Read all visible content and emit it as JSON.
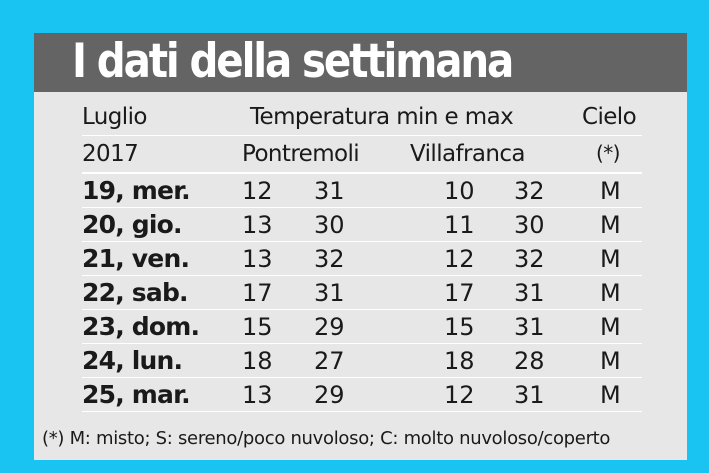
{
  "title": "I dati della settimana",
  "header": {
    "month": "Luglio",
    "temperature": "Temperatura min e max",
    "sky": "Cielo",
    "year": "2017",
    "location1": "Pontremoli",
    "location2": "Villafranca",
    "sky_note": "(*)"
  },
  "rows": [
    {
      "day": "19, mer.",
      "p_min": "12",
      "p_max": "31",
      "v_min": "10",
      "v_max": "32",
      "sky": "M"
    },
    {
      "day": "20, gio.",
      "p_min": "13",
      "p_max": "30",
      "v_min": "11",
      "v_max": "30",
      "sky": "M"
    },
    {
      "day": "21, ven.",
      "p_min": "13",
      "p_max": "32",
      "v_min": "12",
      "v_max": "32",
      "sky": "M"
    },
    {
      "day": "22, sab.",
      "p_min": "17",
      "p_max": "31",
      "v_min": "17",
      "v_max": "31",
      "sky": "M"
    },
    {
      "day": "23, dom.",
      "p_min": "15",
      "p_max": "29",
      "v_min": "15",
      "v_max": "31",
      "sky": "M"
    },
    {
      "day": "24, lun.",
      "p_min": "18",
      "p_max": "27",
      "v_min": "18",
      "v_max": "28",
      "sky": "M"
    },
    {
      "day": "25, mar.",
      "p_min": "13",
      "p_max": "29",
      "v_min": "12",
      "v_max": "31",
      "sky": "M"
    }
  ],
  "legend": "(*) M: misto; S: sereno/poco nuvoloso; C: molto nuvoloso/coperto",
  "colors": {
    "background": "#19c4f3",
    "card": "#e7e7e8",
    "title_bar": "#646464",
    "title_text": "#ffffff"
  }
}
